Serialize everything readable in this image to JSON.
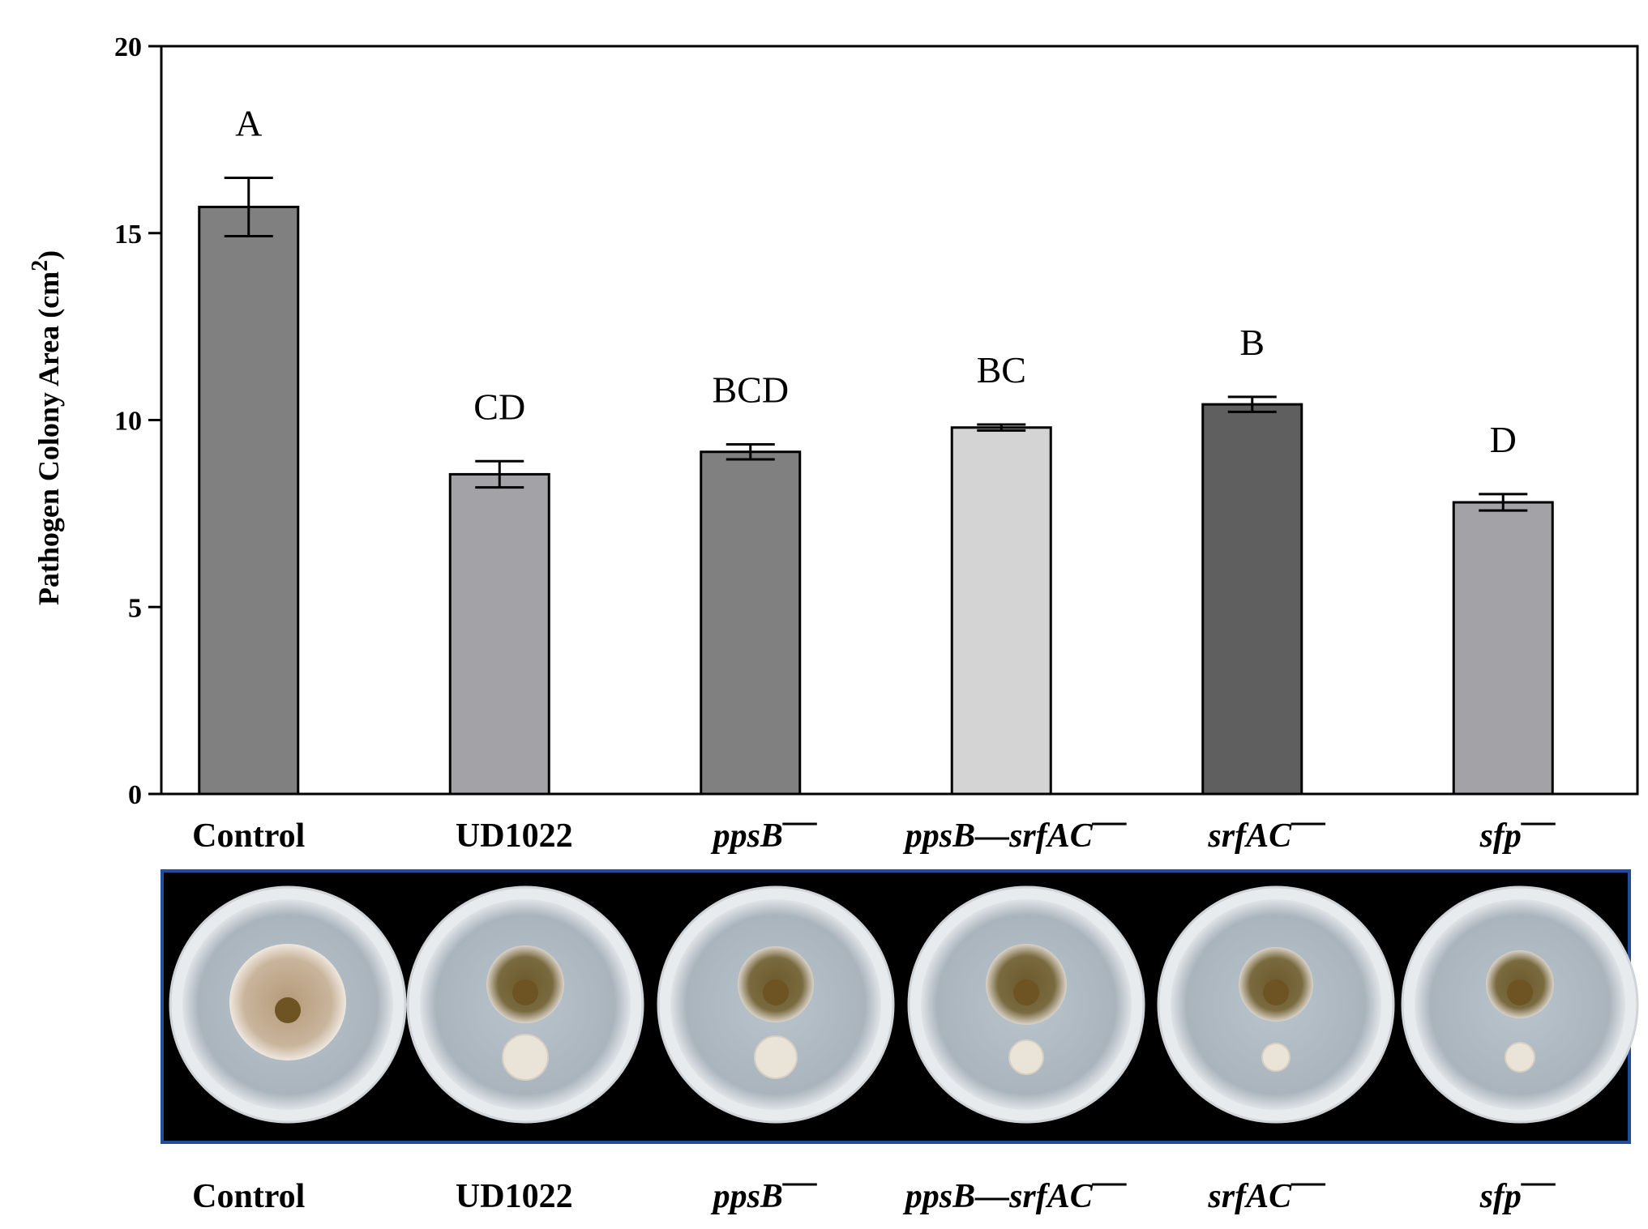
{
  "chart_data": {
    "type": "bar",
    "ylabel": "Pathogen Colony Area (cm",
    "ylabel_superscript": "2",
    "ylabel_close": ")",
    "ylim": [
      0,
      20
    ],
    "yticks": [
      "0",
      "5",
      "10",
      "15",
      "20"
    ],
    "grid": false,
    "categories": [
      {
        "label": "Control",
        "italic": false,
        "superscript": ""
      },
      {
        "label": "UD1022",
        "italic": false,
        "superscript": ""
      },
      {
        "label": "ppsB",
        "italic": true,
        "superscript": "—"
      },
      {
        "label": "ppsB—srfAC",
        "italic": true,
        "superscript": "—"
      },
      {
        "label": "srfAC",
        "italic": true,
        "superscript": "—"
      },
      {
        "label": "sfp",
        "italic": true,
        "superscript": "—"
      }
    ],
    "values": [
      15.7,
      8.55,
      9.15,
      9.8,
      10.42,
      7.8
    ],
    "errors": [
      0.78,
      0.35,
      0.2,
      0.08,
      0.2,
      0.22
    ],
    "significance": [
      "A",
      "CD",
      "BCD",
      "BC",
      "B",
      "D"
    ],
    "bar_colors": [
      "#808080",
      "#a3a3a7",
      "#808080",
      "#d4d4d4",
      "#5f5f5f",
      "#a3a3a7"
    ]
  },
  "plates": {
    "panel_background": "#000000",
    "panel_border": "#1f4e9a",
    "labels": [
      {
        "label": "Control",
        "italic": false,
        "superscript": ""
      },
      {
        "label": "UD1022",
        "italic": false,
        "superscript": ""
      },
      {
        "label": "ppsB",
        "italic": true,
        "superscript": "—"
      },
      {
        "label": "ppsB—srfAC",
        "italic": true,
        "superscript": "—"
      },
      {
        "label": "srfAC",
        "italic": true,
        "superscript": "—"
      },
      {
        "label": "sfp",
        "italic": true,
        "superscript": "—"
      }
    ]
  }
}
